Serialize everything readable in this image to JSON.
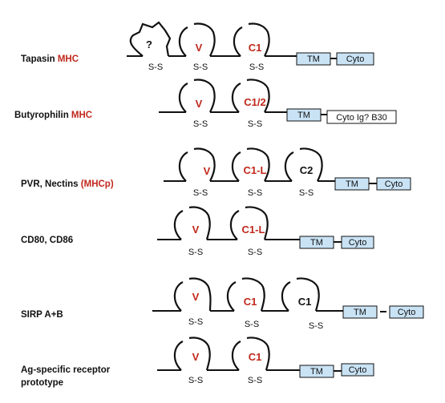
{
  "rows": [
    {
      "name_black": "Tapasin ",
      "name_red": "MHC",
      "unknown_domain": "?",
      "domains": [
        {
          "label": "V",
          "color": "red",
          "bond": "S-S"
        },
        {
          "label": "C1",
          "color": "red",
          "bond": "S-S"
        }
      ],
      "unknown_bond": "S-S",
      "tm": "TM",
      "cyto": "Cyto"
    },
    {
      "name_black": "Butyrophilin ",
      "name_red": "MHC",
      "domains": [
        {
          "label": "V",
          "color": "red",
          "bond": "S-S"
        },
        {
          "label": "C1/2",
          "color": "red",
          "bond": "S-S"
        }
      ],
      "tm": "TM",
      "cyto": "Cyto  Ig? B30"
    },
    {
      "name_black": "PVR, Nectins ",
      "name_red": "(MHCp)",
      "domains": [
        {
          "label": "V",
          "color": "red",
          "bond": "S-S"
        },
        {
          "label": "C1-L",
          "color": "red",
          "bond": "S-S"
        },
        {
          "label": "C2",
          "color": "black",
          "bond": "S-S"
        }
      ],
      "tm": "TM",
      "cyto": "Cyto"
    },
    {
      "name_black": "CD80, CD86",
      "name_red": "",
      "domains": [
        {
          "label": "V",
          "color": "red",
          "bond": "S-S"
        },
        {
          "label": "C1-L",
          "color": "red",
          "bond": "S-S"
        }
      ],
      "tm": "TM",
      "cyto": "Cyto"
    },
    {
      "name_black": "SIRP A+B",
      "name_red": "",
      "domains": [
        {
          "label": "V",
          "color": "red",
          "bond": "S-S"
        },
        {
          "label": "C1",
          "color": "red",
          "bond": "S-S"
        },
        {
          "label": "C1",
          "color": "black",
          "bond": "S-S"
        }
      ],
      "tm": "TM",
      "cyto": "Cyto"
    },
    {
      "name_black": "Ag-specific receptor",
      "name_black_line2": "prototype",
      "name_red": "",
      "domains": [
        {
          "label": "V",
          "color": "red",
          "bond": "S-S"
        },
        {
          "label": "C1",
          "color": "red",
          "bond": "S-S"
        }
      ],
      "tm": "TM",
      "cyto": "Cyto"
    }
  ],
  "colors": {
    "red": "#c0281c",
    "black": "#111111",
    "tm_fill": "#c9e3f5"
  }
}
